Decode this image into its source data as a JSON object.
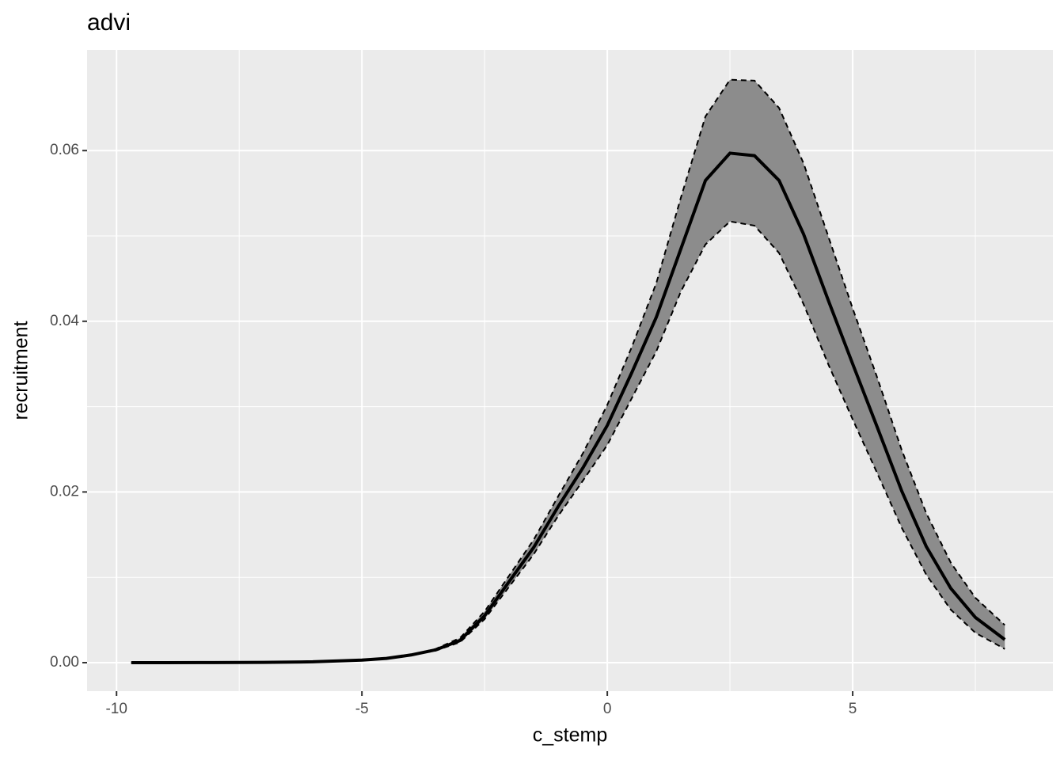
{
  "chart_data": {
    "type": "line",
    "title": "advi",
    "x_label": "c_stemp",
    "y_label": "recruitment",
    "x": [
      -9.7,
      -9,
      -8,
      -7,
      -6,
      -5,
      -4.5,
      -4,
      -3.5,
      -3,
      -2.5,
      -2,
      -1.5,
      -1,
      -0.5,
      0,
      0.5,
      1,
      1.5,
      2,
      2.5,
      3,
      3.5,
      4,
      4.5,
      5,
      5.5,
      6,
      6.5,
      7,
      7.5,
      8.1
    ],
    "values": [
      0,
      0,
      1e-05,
      3e-05,
      0.0001,
      0.0003,
      0.0005,
      0.0009,
      0.0015,
      0.0026,
      0.0055,
      0.0095,
      0.0135,
      0.0183,
      0.0228,
      0.0278,
      0.034,
      0.0405,
      0.0485,
      0.0565,
      0.0597,
      0.0594,
      0.0565,
      0.0502,
      0.0425,
      0.035,
      0.0276,
      0.0201,
      0.0136,
      0.0087,
      0.0053,
      0.0027
    ],
    "lower": [
      0,
      0,
      1e-05,
      3e-05,
      0.0001,
      0.0003,
      0.0005,
      0.0009,
      0.0014,
      0.0024,
      0.0051,
      0.0089,
      0.0127,
      0.0172,
      0.0213,
      0.0255,
      0.031,
      0.0365,
      0.0435,
      0.049,
      0.0517,
      0.0512,
      0.048,
      0.042,
      0.035,
      0.0285,
      0.0222,
      0.0158,
      0.0103,
      0.0062,
      0.0035,
      0.0016
    ],
    "upper": [
      0,
      0,
      1e-05,
      3e-05,
      0.0001,
      0.0003,
      0.0005,
      0.0009,
      0.0016,
      0.0029,
      0.006,
      0.0102,
      0.0144,
      0.0195,
      0.0245,
      0.0302,
      0.037,
      0.0445,
      0.0545,
      0.064,
      0.0683,
      0.0682,
      0.065,
      0.0585,
      0.05,
      0.0415,
      0.0334,
      0.0249,
      0.0175,
      0.0117,
      0.0076,
      0.0044
    ],
    "line_color": "#000000",
    "band_color": "#8c8c8c",
    "xlim": [
      -10.6,
      9.08
    ],
    "ylim": [
      -0.00334,
      0.0718
    ],
    "xticks": [
      -10,
      -5,
      0,
      5
    ],
    "minor_xticks": [
      -7.5,
      -2.5,
      2.5,
      7.5
    ],
    "yticks": [
      {
        "value": 0,
        "label": "0.00"
      },
      {
        "value": 0.02,
        "label": "0.02"
      },
      {
        "value": 0.04,
        "label": "0.04"
      },
      {
        "value": 0.06,
        "label": "0.06"
      }
    ],
    "minor_yticks": [
      0.01,
      0.03,
      0.05
    ],
    "grid": true
  }
}
